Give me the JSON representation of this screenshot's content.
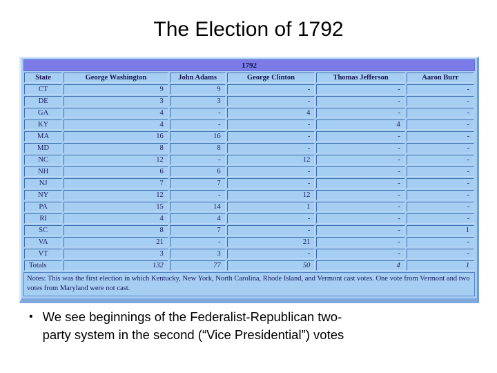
{
  "slide": {
    "title": "The Election of 1792",
    "bullet_glyph": "•",
    "bullet_line1": "We see beginnings of the Federalist-Republican two-",
    "bullet_line2": "party system in the second (“Vice Presidential”) votes"
  },
  "table": {
    "year": "1792",
    "columns": [
      "State",
      "George Washington",
      "John Adams",
      "George Clinton",
      "Thomas Jefferson",
      "Aaron Burr"
    ],
    "rows": [
      [
        "CT",
        "9",
        "9",
        "-",
        "-",
        "-"
      ],
      [
        "DE",
        "3",
        "3",
        "-",
        "-",
        "-"
      ],
      [
        "GA",
        "4",
        "-",
        "4",
        "-",
        "-"
      ],
      [
        "KY",
        "4",
        "-",
        "-",
        "4",
        "-"
      ],
      [
        "MA",
        "16",
        "16",
        "-",
        "-",
        "-"
      ],
      [
        "MD",
        "8",
        "8",
        "-",
        "-",
        "-"
      ],
      [
        "NC",
        "12",
        "-",
        "12",
        "-",
        "-"
      ],
      [
        "NH",
        "6",
        "6",
        "-",
        "-",
        "-"
      ],
      [
        "NJ",
        "7",
        "7",
        "-",
        "-",
        "-"
      ],
      [
        "NY",
        "12",
        "-",
        "12",
        "-",
        "-"
      ],
      [
        "PA",
        "15",
        "14",
        "1",
        "-",
        "-"
      ],
      [
        "RI",
        "4",
        "4",
        "-",
        "-",
        "-"
      ],
      [
        "SC",
        "8",
        "7",
        "-",
        "-",
        "1"
      ],
      [
        "VA",
        "21",
        "-",
        "21",
        "-",
        "-"
      ],
      [
        "VT",
        "3",
        "3",
        "-",
        "-",
        "-"
      ]
    ],
    "totals": [
      "Totals",
      "132",
      "77",
      "50",
      "4",
      "1"
    ],
    "notes": "Notes: This was the first election in which Kentucky, New York, North Carolina, Rhode Island, and Vermont cast votes. One vote from Vermont and two votes from Maryland were not cast."
  },
  "colors": {
    "cell_background": "#a6cdf2",
    "year_band": "#7b7be8",
    "grid_line_dark": "#3f6fae",
    "grid_line_light": "#bcd9f5",
    "frame_bottom": "#7fa9dc",
    "table_text": "#1a2060",
    "title_text": "#000000"
  }
}
